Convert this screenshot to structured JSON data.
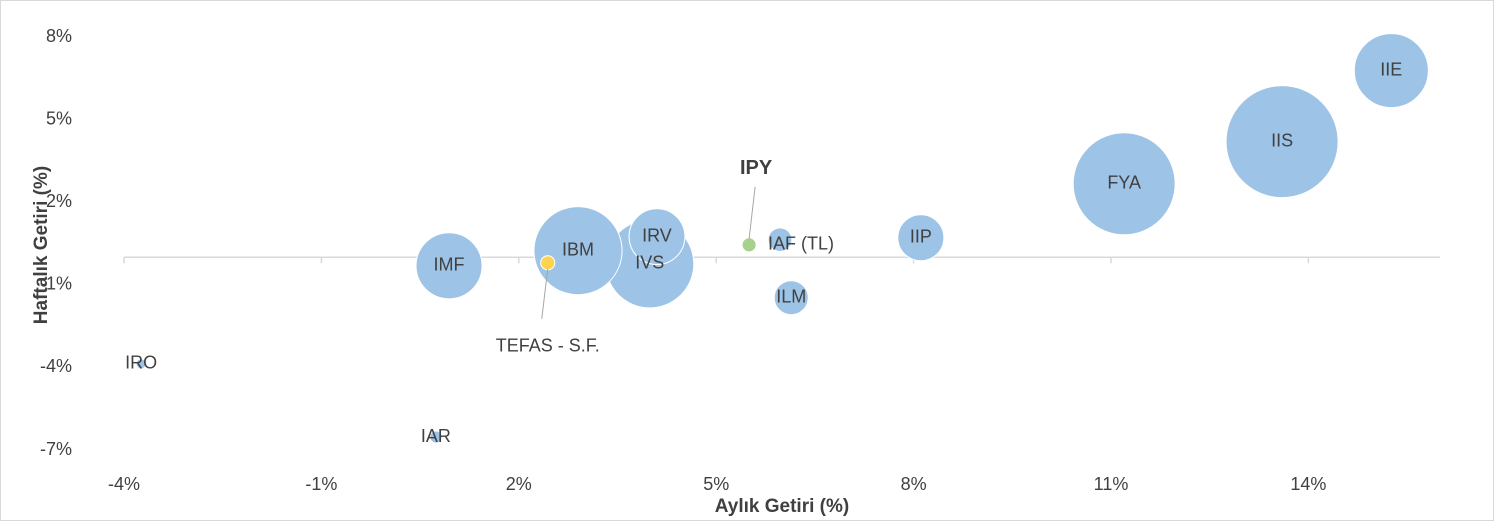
{
  "chart_data": {
    "type": "bubble",
    "x_label": "Aylık Getiri (%)",
    "y_label": "Haftalık Getiri (%)",
    "labels": [
      "IIE",
      "IIS",
      "FYA",
      "IIP",
      "IAF (TL)",
      "ILM",
      "IRV",
      "IVS",
      "IBM",
      "IMF",
      "IRO",
      "IAR",
      "TEFAS - S.F.",
      "IPY"
    ],
    "x": [
      15.26,
      13.6,
      11.2,
      8.11,
      5.97,
      6.14,
      4.1,
      3.99,
      2.9,
      0.94,
      -3.74,
      0.74,
      2.44,
      5.5
    ],
    "values": [
      6.78,
      4.2,
      2.67,
      0.71,
      0.64,
      -1.47,
      0.75,
      -0.24,
      0.24,
      -0.31,
      -3.87,
      -6.53,
      -0.2,
      0.45
    ],
    "sizes": [
      137,
      314,
      260,
      53,
      14,
      29,
      78,
      194,
      194,
      109,
      2.5,
      3.6,
      5,
      5
    ],
    "colors": [
      "#9dc3e6",
      "#9dc3e6",
      "#9dc3e6",
      "#9dc3e6",
      "#9dc3e6",
      "#9dc3e6",
      "#9dc3e6",
      "#9dc3e6",
      "#9dc3e6",
      "#9dc3e6",
      "#9dc3e6",
      "#9dc3e6",
      "#ffd34d",
      "#a9d18e"
    ],
    "xlim": [
      -4,
      16
    ],
    "xticks": [
      {
        "value": -4,
        "label": "-4%"
      },
      {
        "value": -1,
        "label": "-1%"
      },
      {
        "value": 2,
        "label": "2%"
      },
      {
        "value": 5,
        "label": "5%"
      },
      {
        "value": 8,
        "label": "8%"
      },
      {
        "value": 11,
        "label": "11%"
      },
      {
        "value": 14,
        "label": "14%"
      }
    ],
    "ylim": [
      -7,
      8
    ],
    "yticks": [
      {
        "value": -7,
        "label": "-7%"
      },
      {
        "value": -4,
        "label": "-4%"
      },
      {
        "value": -1,
        "label": "-1%"
      },
      {
        "value": 2,
        "label": "2%"
      },
      {
        "value": 5,
        "label": "5%"
      },
      {
        "value": 8,
        "label": "8%"
      }
    ]
  }
}
